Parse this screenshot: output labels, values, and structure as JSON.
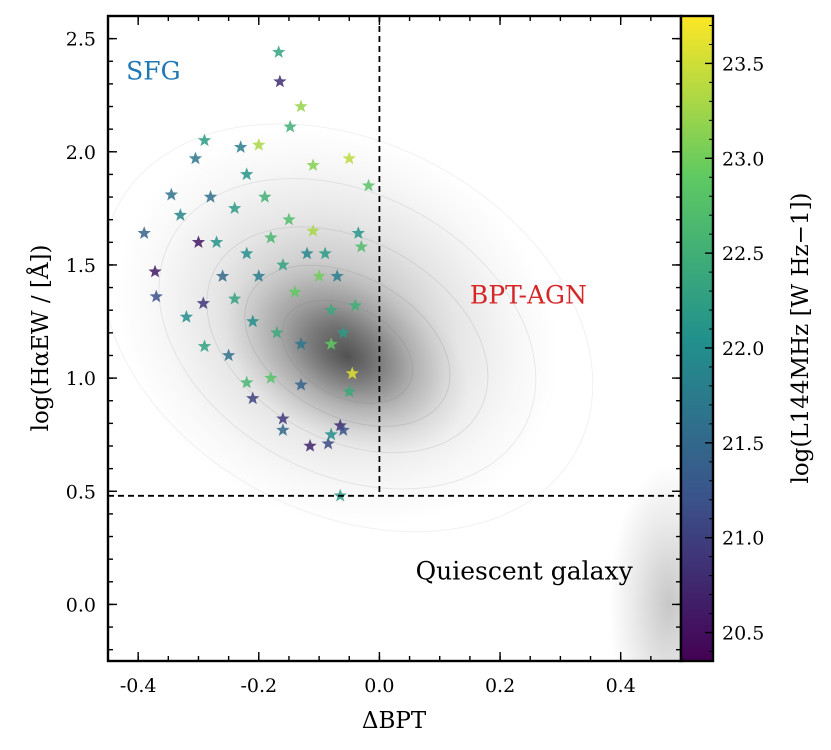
{
  "chart_data": {
    "type": "scatter",
    "xlabel": "ΔBPT",
    "ylabel": "log(HαEW / [Å])",
    "xlim": [
      -0.45,
      0.5
    ],
    "ylim": [
      -0.25,
      2.6
    ],
    "xticks": [
      -0.4,
      -0.2,
      0.0,
      0.2,
      0.4
    ],
    "xtick_labels": [
      "-0.4",
      "-0.2",
      "0.0",
      "0.2",
      "0.4"
    ],
    "yticks": [
      0.0,
      0.5,
      1.0,
      1.5,
      2.0,
      2.5
    ],
    "ytick_labels": [
      "0.0",
      "0.5",
      "1.0",
      "1.5",
      "2.0",
      "2.5"
    ],
    "dividers": {
      "vertical_x": 0.0,
      "vertical_y_from": 0.48,
      "horizontal_y": 0.48
    },
    "regions": [
      {
        "label": "SFG",
        "x": -0.42,
        "y": 2.32,
        "color": "#1f77b4"
      },
      {
        "label": "BPT-AGN",
        "x": 0.15,
        "y": 1.33,
        "color": "#d62728"
      },
      {
        "label": "Quiescent galaxy",
        "x": 0.06,
        "y": 0.11,
        "color": "#000000"
      }
    ],
    "background_density": {
      "peak_x": -0.02,
      "peak_y": 1.05,
      "tail_x": 0.48,
      "tail_y": 0.0
    },
    "colorbar": {
      "label": "log(L144MHz [W Hz−1])",
      "min": 20.35,
      "max": 23.75,
      "ticks": [
        20.5,
        21.0,
        21.5,
        22.0,
        22.5,
        23.0,
        23.5
      ],
      "tick_labels": [
        "20.5",
        "21.0",
        "21.5",
        "22.0",
        "22.5",
        "23.0",
        "23.5"
      ],
      "cmap": [
        "#440154",
        "#3b528b",
        "#21918c",
        "#5ec962",
        "#fde725"
      ]
    },
    "series": [
      {
        "name": "galaxies",
        "marker": "star",
        "points": [
          {
            "x": -0.167,
            "y": 2.44,
            "c": 22.3
          },
          {
            "x": -0.165,
            "y": 2.31,
            "c": 20.8
          },
          {
            "x": -0.13,
            "y": 2.2,
            "c": 23.2
          },
          {
            "x": -0.148,
            "y": 2.11,
            "c": 22.5
          },
          {
            "x": -0.05,
            "y": 1.97,
            "c": 23.4
          },
          {
            "x": -0.018,
            "y": 1.85,
            "c": 22.8
          },
          {
            "x": -0.39,
            "y": 1.64,
            "c": 21.4
          },
          {
            "x": -0.372,
            "y": 1.47,
            "c": 20.6
          },
          {
            "x": -0.37,
            "y": 1.36,
            "c": 21.2
          },
          {
            "x": -0.345,
            "y": 1.81,
            "c": 21.6
          },
          {
            "x": -0.33,
            "y": 1.72,
            "c": 21.9
          },
          {
            "x": -0.32,
            "y": 1.27,
            "c": 22.0
          },
          {
            "x": -0.29,
            "y": 1.14,
            "c": 22.3
          },
          {
            "x": -0.22,
            "y": 0.98,
            "c": 22.6
          },
          {
            "x": -0.21,
            "y": 0.91,
            "c": 21.0
          },
          {
            "x": -0.16,
            "y": 0.82,
            "c": 20.9
          },
          {
            "x": -0.16,
            "y": 0.77,
            "c": 21.5
          },
          {
            "x": -0.115,
            "y": 0.7,
            "c": 20.7
          },
          {
            "x": -0.085,
            "y": 0.71,
            "c": 21.1
          },
          {
            "x": -0.08,
            "y": 0.75,
            "c": 22.0
          },
          {
            "x": -0.065,
            "y": 0.79,
            "c": 20.8
          },
          {
            "x": -0.06,
            "y": 0.77,
            "c": 21.2
          },
          {
            "x": -0.065,
            "y": 0.48,
            "c": 22.2
          },
          {
            "x": -0.05,
            "y": 0.94,
            "c": 22.4
          },
          {
            "x": -0.045,
            "y": 1.02,
            "c": 23.6
          },
          {
            "x": -0.04,
            "y": 1.32,
            "c": 22.5
          },
          {
            "x": -0.03,
            "y": 1.58,
            "c": 22.7
          },
          {
            "x": -0.035,
            "y": 1.64,
            "c": 22.1
          },
          {
            "x": -0.11,
            "y": 1.94,
            "c": 23.1
          },
          {
            "x": -0.2,
            "y": 2.03,
            "c": 23.3
          },
          {
            "x": -0.23,
            "y": 2.02,
            "c": 21.8
          },
          {
            "x": -0.29,
            "y": 2.05,
            "c": 22.2
          },
          {
            "x": -0.305,
            "y": 1.97,
            "c": 21.7
          },
          {
            "x": -0.3,
            "y": 1.6,
            "c": 20.6
          },
          {
            "x": -0.292,
            "y": 1.33,
            "c": 20.9
          },
          {
            "x": -0.25,
            "y": 1.1,
            "c": 21.6
          },
          {
            "x": -0.18,
            "y": 1.0,
            "c": 22.8
          },
          {
            "x": -0.13,
            "y": 0.97,
            "c": 21.4
          },
          {
            "x": -0.24,
            "y": 1.75,
            "c": 22.2
          },
          {
            "x": -0.22,
            "y": 1.55,
            "c": 22.0
          },
          {
            "x": -0.2,
            "y": 1.45,
            "c": 21.8
          },
          {
            "x": -0.18,
            "y": 1.62,
            "c": 22.6
          },
          {
            "x": -0.16,
            "y": 1.5,
            "c": 22.3
          },
          {
            "x": -0.14,
            "y": 1.38,
            "c": 22.9
          },
          {
            "x": -0.12,
            "y": 1.55,
            "c": 21.9
          },
          {
            "x": -0.1,
            "y": 1.45,
            "c": 23.0
          },
          {
            "x": -0.08,
            "y": 1.3,
            "c": 22.4
          },
          {
            "x": -0.26,
            "y": 1.45,
            "c": 21.5
          },
          {
            "x": -0.27,
            "y": 1.6,
            "c": 22.1
          },
          {
            "x": -0.19,
            "y": 1.8,
            "c": 22.5
          },
          {
            "x": -0.15,
            "y": 1.7,
            "c": 22.7
          },
          {
            "x": -0.11,
            "y": 1.65,
            "c": 23.3
          },
          {
            "x": -0.09,
            "y": 1.55,
            "c": 22.2
          },
          {
            "x": -0.07,
            "y": 1.45,
            "c": 21.8
          },
          {
            "x": -0.21,
            "y": 1.25,
            "c": 22.0
          },
          {
            "x": -0.17,
            "y": 1.2,
            "c": 22.4
          },
          {
            "x": -0.13,
            "y": 1.15,
            "c": 21.7
          },
          {
            "x": -0.24,
            "y": 1.35,
            "c": 22.3
          },
          {
            "x": -0.28,
            "y": 1.8,
            "c": 21.6
          },
          {
            "x": -0.22,
            "y": 1.9,
            "c": 22.1
          },
          {
            "x": -0.08,
            "y": 1.15,
            "c": 22.9
          },
          {
            "x": -0.06,
            "y": 1.2,
            "c": 22.2
          }
        ]
      }
    ]
  }
}
